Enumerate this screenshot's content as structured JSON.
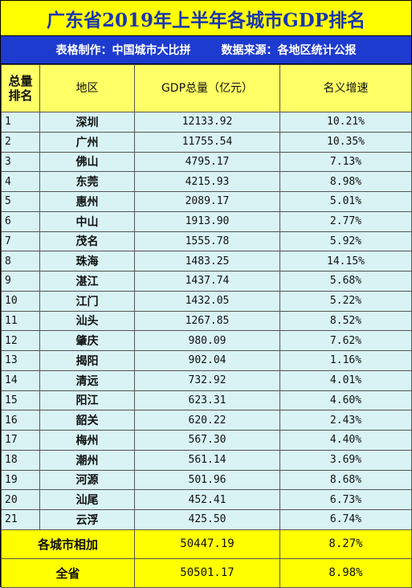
{
  "title": "广东省2019年上半年各城市GDP排名",
  "subtitle": {
    "maker": "表格制作：中国城市大比拼",
    "source": "数据来源：各地区统计公报"
  },
  "headers": {
    "rank": "总量排名",
    "region": "地区",
    "gdp": "GDP总量（亿元）",
    "growth": "名义增速"
  },
  "rows": [
    {
      "rank": "1",
      "city": "深圳",
      "gdp": "12133.92",
      "growth": "10.21%"
    },
    {
      "rank": "2",
      "city": "广州",
      "gdp": "11755.54",
      "growth": "10.35%"
    },
    {
      "rank": "3",
      "city": "佛山",
      "gdp": "4795.17",
      "growth": "7.13%"
    },
    {
      "rank": "4",
      "city": "东莞",
      "gdp": "4215.93",
      "growth": "8.98%"
    },
    {
      "rank": "5",
      "city": "惠州",
      "gdp": "2089.17",
      "growth": "5.01%"
    },
    {
      "rank": "6",
      "city": "中山",
      "gdp": "1913.90",
      "growth": "2.77%"
    },
    {
      "rank": "7",
      "city": "茂名",
      "gdp": "1555.78",
      "growth": "5.92%"
    },
    {
      "rank": "8",
      "city": "珠海",
      "gdp": "1483.25",
      "growth": "14.15%"
    },
    {
      "rank": "9",
      "city": "湛江",
      "gdp": "1437.74",
      "growth": "5.68%"
    },
    {
      "rank": "10",
      "city": "江门",
      "gdp": "1432.05",
      "growth": "5.22%"
    },
    {
      "rank": "11",
      "city": "汕头",
      "gdp": "1267.85",
      "growth": "8.52%"
    },
    {
      "rank": "12",
      "city": "肇庆",
      "gdp": "980.09",
      "growth": "7.62%"
    },
    {
      "rank": "13",
      "city": "揭阳",
      "gdp": "902.04",
      "growth": "1.16%"
    },
    {
      "rank": "14",
      "city": "清远",
      "gdp": "732.92",
      "growth": "4.01%"
    },
    {
      "rank": "15",
      "city": "阳江",
      "gdp": "623.31",
      "growth": "4.60%"
    },
    {
      "rank": "16",
      "city": "韶关",
      "gdp": "620.22",
      "growth": "2.43%"
    },
    {
      "rank": "17",
      "city": "梅州",
      "gdp": "567.30",
      "growth": "4.40%"
    },
    {
      "rank": "18",
      "city": "潮州",
      "gdp": "561.14",
      "growth": "3.69%"
    },
    {
      "rank": "19",
      "city": "河源",
      "gdp": "501.96",
      "growth": "8.68%"
    },
    {
      "rank": "20",
      "city": "汕尾",
      "gdp": "452.41",
      "growth": "6.73%"
    },
    {
      "rank": "21",
      "city": "云浮",
      "gdp": "425.50",
      "growth": "6.74%"
    }
  ],
  "totals": [
    {
      "label": "各城市相加",
      "gdp": "50447.19",
      "growth": "8.27%"
    },
    {
      "label": "全省",
      "gdp": "50501.17",
      "growth": "8.98%"
    }
  ],
  "colors": {
    "title_bg": "#ffff00",
    "title_text": "#1a35b0",
    "subtitle_bg": "#1e3bd0",
    "header_bg": "#ffff66",
    "row_bg": "#d9f3f5",
    "footer_bg": "#ffff00"
  }
}
